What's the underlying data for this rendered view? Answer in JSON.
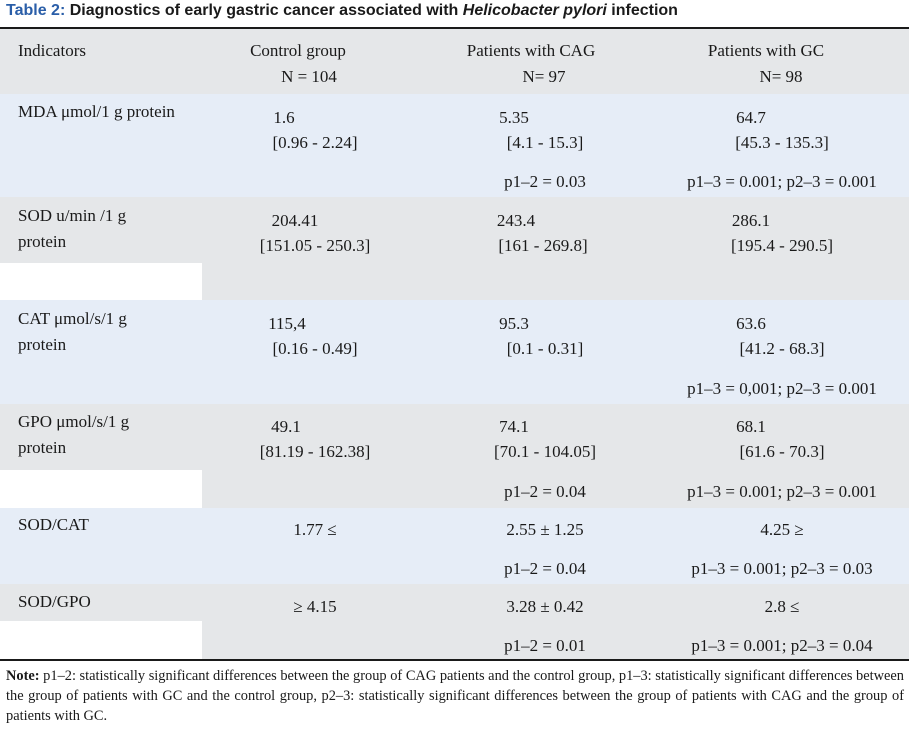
{
  "caption": {
    "number": "Table 2:",
    "text_before": "Diagnostics of early gastric cancer associated with",
    "italic": "Helicobacter pylori",
    "text_after": "infection"
  },
  "headers": {
    "indicators": "Indicators",
    "control": "Control group",
    "control_n": "N = 104",
    "cag": "Patients with CAG",
    "cag_n": "N= 97",
    "gc": "Patients with GC",
    "gc_n": "N= 98"
  },
  "rows": {
    "mda": {
      "label1": "MDA μmol/1 g protein",
      "control_v": "1.6",
      "control_r": "[0.96 - 2.24]",
      "cag_v": "5.35",
      "cag_r": "[4.1 - 15.3]",
      "cag_p": "p1–2 = 0.03",
      "gc_v": "64.7",
      "gc_r": "[45.3 - 135.3]",
      "gc_p": "p1–3 = 0.001; p2–3 = 0.001"
    },
    "sod": {
      "label1": "SOD u/min /1 g",
      "label2": "protein",
      "control_v": "204.41",
      "control_r": "[151.05 - 250.3]",
      "cag_v": "243.4",
      "cag_r": "[161 - 269.8]",
      "gc_v": "286.1",
      "gc_r": "[195.4 - 290.5]"
    },
    "cat": {
      "label1": "CAT μmol/s/1 g",
      "label2": "protein",
      "control_v": "115,4",
      "control_r": "[0.16 - 0.49]",
      "cag_v": "95.3",
      "cag_r": "[0.1 - 0.31]",
      "gc_v": "63.6",
      "gc_r": "[41.2 - 68.3]",
      "gc_p": "p1–3 = 0,001; p2–3 = 0.001"
    },
    "gpo": {
      "label1": "GPO μmol/s/1 g",
      "label2": "protein",
      "control_v": "49.1",
      "control_r": "[81.19 - 162.38]",
      "cag_v": "74.1",
      "cag_r": "[70.1 - 104.05]",
      "cag_p": "p1–2 = 0.04",
      "gc_v": "68.1",
      "gc_r": "[61.6 - 70.3]",
      "gc_p": "p1–3 = 0.001; p2–3 = 0.001"
    },
    "sodcat": {
      "label1": "SOD/CAT",
      "control_v": "1.77 ≤",
      "cag_v": "2.55 ± 1.25",
      "cag_p": "p1–2 = 0.04",
      "gc_v": "4.25 ≥",
      "gc_p": "p1–3 = 0.001; p2–3 = 0.03"
    },
    "sodgpo": {
      "label1": "SOD/GPO",
      "control_v": "≥ 4.15",
      "cag_v": "3.28 ± 0.42",
      "cag_p": "p1–2 = 0.01",
      "gc_v": "2.8 ≤",
      "gc_p": "p1–3 = 0.001; p2–3 = 0.04"
    }
  },
  "note": {
    "label": "Note:",
    "text": "p1–2: statistically significant differences between the group of CAG patients and the control group, p1–3: statistically significant differences between the group of patients with GC and the control group, p2–3: statistically significant differences between the group of patients with CAG and the group of patients with GC."
  },
  "colors": {
    "caption_number": "#2a5ea8",
    "band_blue": "#e6edf7",
    "band_grey": "#e5e7e9"
  }
}
